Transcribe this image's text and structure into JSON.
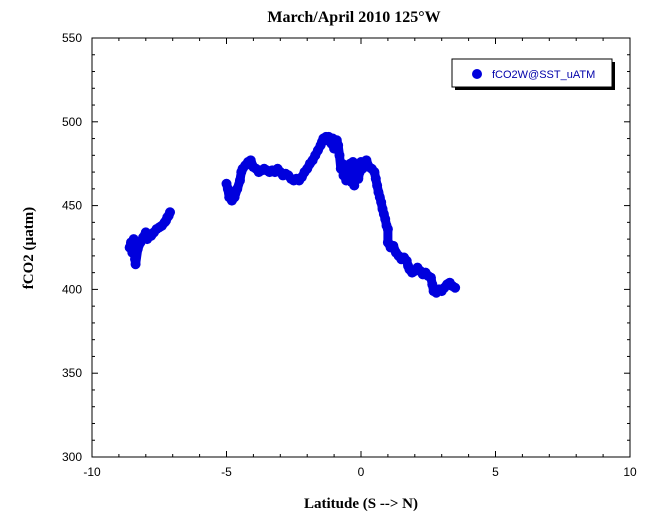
{
  "chart_data": {
    "type": "scatter",
    "title": "March/April 2010 125°W",
    "xlabel": "Latitude (S --> N)",
    "ylabel": "fCO2 (µatm)",
    "xlim": [
      -10,
      10
    ],
    "ylim": [
      300,
      550
    ],
    "xticks": [
      -10,
      -5,
      0,
      5,
      10
    ],
    "yticks": [
      300,
      350,
      400,
      450,
      500,
      550
    ],
    "grid": false,
    "legend_position": "top-right",
    "series": [
      {
        "name": "fCO2W@SST_uATM",
        "color": "#0000dd",
        "points": [
          [
            -8.6,
            425
          ],
          [
            -8.55,
            428
          ],
          [
            -8.5,
            422
          ],
          [
            -8.45,
            430
          ],
          [
            -8.4,
            418
          ],
          [
            -8.38,
            415
          ],
          [
            -8.3,
            424
          ],
          [
            -8.2,
            428
          ],
          [
            -8.1,
            431
          ],
          [
            -8.0,
            434
          ],
          [
            -7.95,
            430
          ],
          [
            -7.9,
            433
          ],
          [
            -7.8,
            432
          ],
          [
            -7.7,
            434
          ],
          [
            -7.6,
            436
          ],
          [
            -7.5,
            437
          ],
          [
            -7.4,
            438
          ],
          [
            -7.3,
            440
          ],
          [
            -7.25,
            441
          ],
          [
            -7.2,
            443
          ],
          [
            -7.15,
            444
          ],
          [
            -7.1,
            446
          ],
          [
            -5.0,
            463
          ],
          [
            -4.95,
            460
          ],
          [
            -4.9,
            455
          ],
          [
            -4.85,
            458
          ],
          [
            -4.8,
            453
          ],
          [
            -4.7,
            455
          ],
          [
            -4.6,
            460
          ],
          [
            -4.5,
            465
          ],
          [
            -4.45,
            470
          ],
          [
            -4.4,
            472
          ],
          [
            -4.3,
            474
          ],
          [
            -4.2,
            476
          ],
          [
            -4.1,
            477
          ],
          [
            -4.0,
            473
          ],
          [
            -3.9,
            472
          ],
          [
            -3.8,
            470
          ],
          [
            -3.7,
            471
          ],
          [
            -3.6,
            472
          ],
          [
            -3.5,
            471
          ],
          [
            -3.4,
            470
          ],
          [
            -3.3,
            471
          ],
          [
            -3.2,
            470
          ],
          [
            -3.1,
            472
          ],
          [
            -3.0,
            470
          ],
          [
            -2.9,
            468
          ],
          [
            -2.8,
            469
          ],
          [
            -2.7,
            468
          ],
          [
            -2.6,
            466
          ],
          [
            -2.5,
            465
          ],
          [
            -2.4,
            466
          ],
          [
            -2.3,
            465
          ],
          [
            -2.2,
            467
          ],
          [
            -2.1,
            470
          ],
          [
            -2.0,
            472
          ],
          [
            -1.9,
            475
          ],
          [
            -1.8,
            477
          ],
          [
            -1.7,
            480
          ],
          [
            -1.6,
            483
          ],
          [
            -1.5,
            486
          ],
          [
            -1.45,
            488
          ],
          [
            -1.4,
            490
          ],
          [
            -1.3,
            491
          ],
          [
            -1.25,
            489
          ],
          [
            -1.2,
            491
          ],
          [
            -1.1,
            487
          ],
          [
            -1.05,
            490
          ],
          [
            -1.0,
            484
          ],
          [
            -0.95,
            488
          ],
          [
            -0.9,
            489
          ],
          [
            -0.85,
            486
          ],
          [
            -0.8,
            480
          ],
          [
            -0.75,
            472
          ],
          [
            -0.7,
            475
          ],
          [
            -0.65,
            468
          ],
          [
            -0.6,
            470
          ],
          [
            -0.55,
            465
          ],
          [
            -0.5,
            472
          ],
          [
            -0.45,
            468
          ],
          [
            -0.4,
            475
          ],
          [
            -0.35,
            464
          ],
          [
            -0.3,
            476
          ],
          [
            -0.25,
            462
          ],
          [
            -0.2,
            470
          ],
          [
            -0.15,
            474
          ],
          [
            -0.1,
            466
          ],
          [
            -0.05,
            470
          ],
          [
            0.0,
            476
          ],
          [
            0.05,
            472
          ],
          [
            0.1,
            475
          ],
          [
            0.2,
            477
          ],
          [
            0.3,
            473
          ],
          [
            0.4,
            472
          ],
          [
            0.5,
            470
          ],
          [
            0.55,
            466
          ],
          [
            0.6,
            462
          ],
          [
            0.65,
            458
          ],
          [
            0.7,
            455
          ],
          [
            0.75,
            452
          ],
          [
            0.8,
            448
          ],
          [
            0.85,
            445
          ],
          [
            0.9,
            442
          ],
          [
            0.95,
            438
          ],
          [
            1.0,
            436
          ],
          [
            1.0,
            428
          ],
          [
            1.05,
            427
          ],
          [
            1.1,
            425
          ],
          [
            1.2,
            426
          ],
          [
            1.3,
            422
          ],
          [
            1.4,
            420
          ],
          [
            1.5,
            418
          ],
          [
            1.6,
            419
          ],
          [
            1.7,
            417
          ],
          [
            1.75,
            414
          ],
          [
            1.8,
            412
          ],
          [
            1.9,
            410
          ],
          [
            2.0,
            411
          ],
          [
            2.1,
            413
          ],
          [
            2.2,
            411
          ],
          [
            2.3,
            409
          ],
          [
            2.4,
            410
          ],
          [
            2.5,
            408
          ],
          [
            2.6,
            407
          ],
          [
            2.65,
            403
          ],
          [
            2.7,
            399
          ],
          [
            2.8,
            398
          ],
          [
            2.9,
            400
          ],
          [
            3.0,
            399
          ],
          [
            3.1,
            401
          ],
          [
            3.2,
            403
          ],
          [
            3.3,
            404
          ],
          [
            3.4,
            402
          ],
          [
            3.5,
            401
          ]
        ]
      }
    ]
  }
}
